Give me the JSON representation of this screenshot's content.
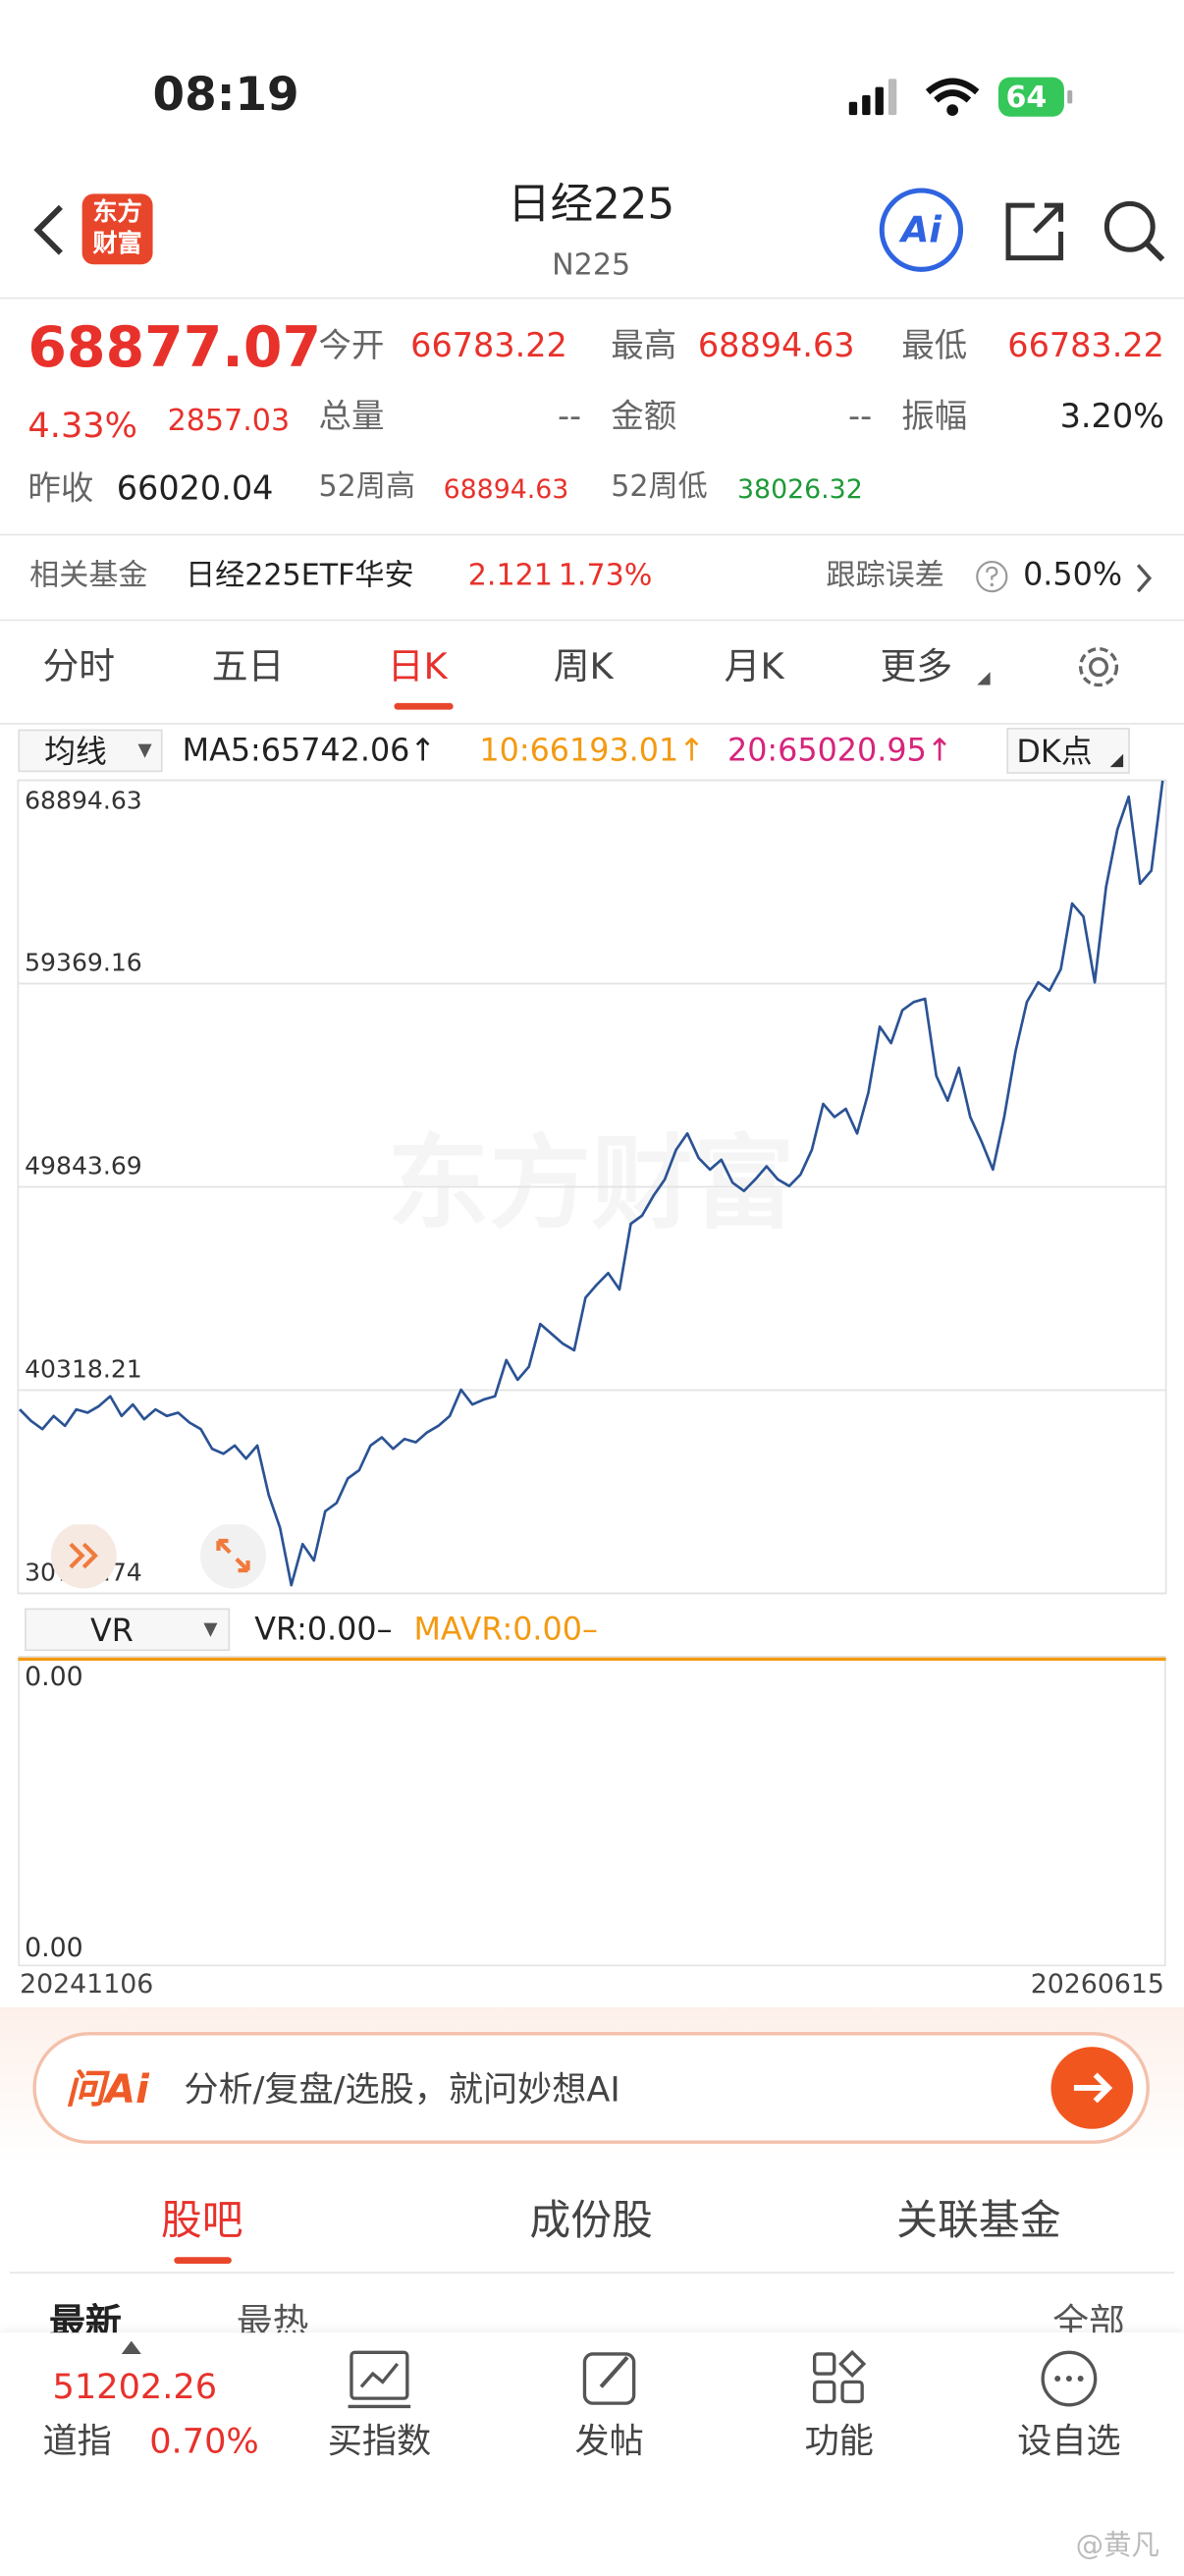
{
  "status_bar": {
    "time": "08:19",
    "battery": "64"
  },
  "header": {
    "logo": [
      "东方",
      "财富"
    ],
    "title": "日经225",
    "code": "N225",
    "ai": "Ai"
  },
  "quote": {
    "price": "68877.07",
    "change_pct": "4.33%",
    "change": "2857.03",
    "fields": [
      {
        "label": "今开",
        "value": "66783.22"
      },
      {
        "label": "最高",
        "value": "68894.63"
      },
      {
        "label": "最低",
        "value": "66783.22"
      },
      {
        "label": "总量",
        "value": "--"
      },
      {
        "label": "金额",
        "value": "--"
      },
      {
        "label": "振幅",
        "value": "3.20%"
      },
      {
        "label": "昨收",
        "value": "66020.04"
      },
      {
        "label": "52周高",
        "value": "68894.63"
      },
      {
        "label": "52周低",
        "value": "38026.32"
      }
    ]
  },
  "fund": {
    "label": "相关基金",
    "name": "日经225ETF华安",
    "price": "2.121",
    "pct": "1.73%",
    "tracking_label": "跟踪误差",
    "tracking_value": "0.50%"
  },
  "period_tabs": [
    "分时",
    "五日",
    "日K",
    "周K",
    "月K",
    "更多"
  ],
  "ma_bar": {
    "selector": "均线",
    "ma5": "MA5:65742.06↑",
    "ma10": "10:66193.01↑",
    "ma20": "20:65020.95↑",
    "dk": "DK点"
  },
  "chart_data": {
    "type": "line",
    "color": "#2b5394",
    "ylim": [
      30792.74,
      68894.63
    ],
    "yticks": [
      30792.74,
      40318.21,
      49843.69,
      59369.16,
      68894.63
    ],
    "grid": true,
    "xtick_labels": [
      "20241106",
      "20260615"
    ],
    "watermark": "东方财富",
    "values": [
      39415,
      38877,
      38492,
      39107,
      38646,
      39415,
      39262,
      39569,
      40031,
      39107,
      39646,
      38954,
      39415,
      39107,
      39262,
      38800,
      38492,
      37568,
      37337,
      37722,
      37106,
      37722,
      35413,
      33874,
      31180,
      33104,
      32334,
      34643,
      35028,
      36183,
      36568,
      37722,
      38107,
      37568,
      38030,
      37876,
      38338,
      38646,
      39107,
      40339,
      39646,
      39877,
      40031,
      41725,
      40801,
      41417,
      43418,
      42956,
      42494,
      42186,
      44649,
      45265,
      45804,
      45034,
      48113,
      48498,
      49422,
      50191,
      51577,
      52346,
      51192,
      50653,
      51115,
      50037,
      49652,
      50191,
      50807,
      50191,
      49883,
      50422,
      51577,
      53732,
      53116,
      53501,
      52346,
      54271,
      57349,
      56580,
      58119,
      58504,
      58658,
      55040,
      53886,
      55425,
      53116,
      51962,
      50653,
      53116,
      56195,
      58504,
      59428,
      59043,
      60043,
      63122,
      62506,
      59428,
      63892,
      66586,
      68125,
      64046,
      64662,
      68877.07
    ]
  },
  "vr_panel": {
    "selector": "VR",
    "vr": "VR:0.00–",
    "mavr": "MAVR:0.00–",
    "top_label": "0.00",
    "bottom_label": "0.00"
  },
  "ai_bar": {
    "brand": "问Ai",
    "placeholder": "分析/复盘/选股，就问妙想AI"
  },
  "section_tabs": [
    "股吧",
    "成份股",
    "关联基金"
  ],
  "sub_tabs": [
    "最新",
    "最热",
    "全部"
  ],
  "bottom_nav": {
    "index_value": "51202.26",
    "index_name": "道指",
    "index_pct": "0.70%",
    "items": [
      "买指数",
      "发帖",
      "功能",
      "设自选"
    ]
  },
  "watermark": "@黄凡"
}
